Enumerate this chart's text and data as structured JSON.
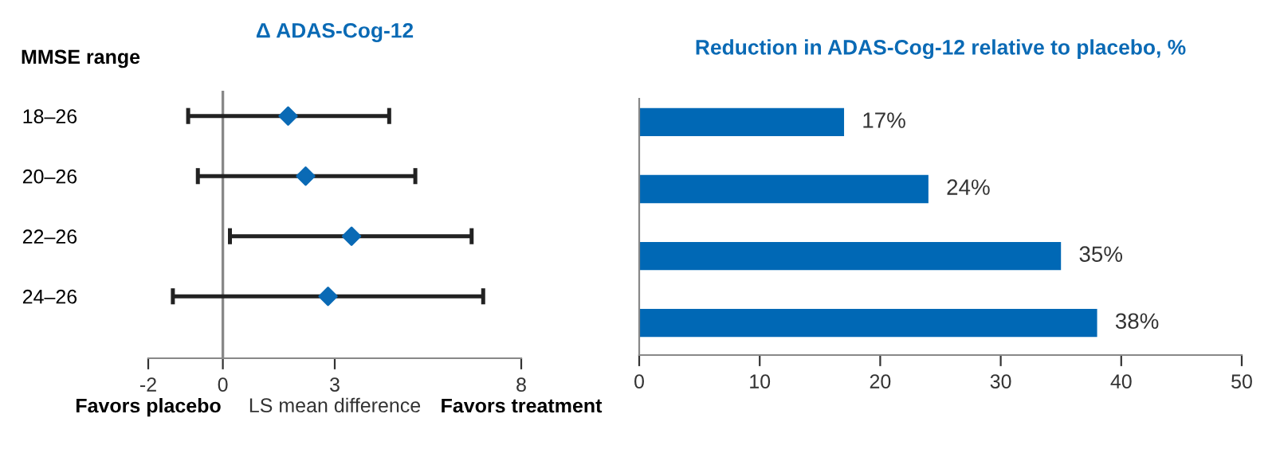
{
  "chart_data": [
    {
      "type": "scatter",
      "orientation": "horizontal",
      "title": "Δ ADAS-Cog-12",
      "ylabel": "MMSE range",
      "xlabel": "LS mean difference",
      "categories": [
        "18–26",
        "20–26",
        "22–26",
        "24–26"
      ],
      "series": [
        {
          "color": "#0a6ab5",
          "values": [
            1.75,
            2.22,
            3.45,
            2.82
          ],
          "errors": [
            [
              -0.93,
              4.46
            ],
            [
              -0.67,
              5.16
            ],
            [
              0.19,
              6.67
            ],
            [
              -1.34,
              6.98
            ]
          ]
        }
      ],
      "marker": "diamond",
      "xlim": [
        -2,
        8
      ],
      "xticks": [
        -2,
        0,
        3,
        8
      ],
      "ref_lines": [
        {
          "axis": "x",
          "value": 0,
          "color": "#888888"
        }
      ],
      "annotations": [
        "Favors placebo",
        "Favors treatment"
      ],
      "grid": false,
      "legend": false
    },
    {
      "type": "bar",
      "orientation": "horizontal",
      "title": "Reduction in ADAS-Cog-12 relative to placebo, %",
      "categories": [
        null,
        null,
        null,
        null
      ],
      "series": [
        {
          "color": "#0068b5",
          "values": [
            17,
            24,
            35,
            38
          ],
          "value_labels": [
            "17%",
            "24%",
            "35%",
            "38%"
          ]
        }
      ],
      "xlim": [
        0,
        50
      ],
      "xticks": [
        0,
        10,
        20,
        30,
        40,
        50
      ],
      "grid": false,
      "legend": false
    }
  ]
}
